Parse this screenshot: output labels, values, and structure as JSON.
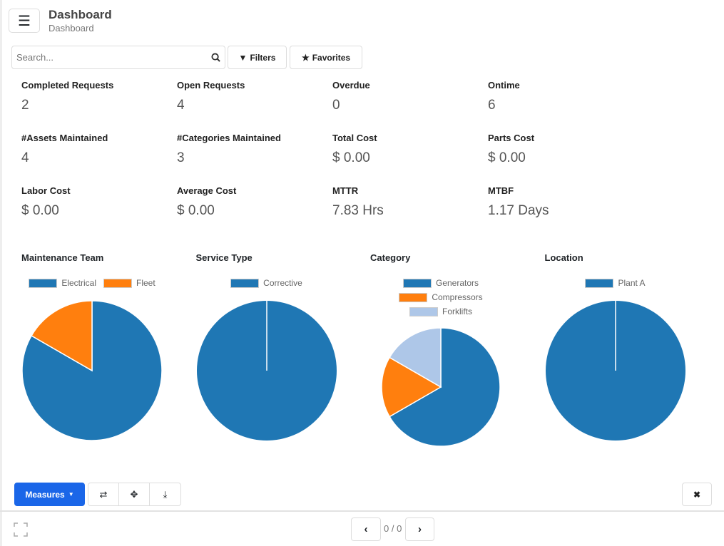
{
  "header": {
    "title": "Dashboard",
    "breadcrumb": "Dashboard"
  },
  "search": {
    "placeholder": "Search..."
  },
  "toolbar": {
    "filters": "Filters",
    "favorites": "Favorites"
  },
  "kpis": [
    {
      "label": "Completed Requests",
      "value": "2"
    },
    {
      "label": "Open Requests",
      "value": "4"
    },
    {
      "label": "Overdue",
      "value": "0"
    },
    {
      "label": "Ontime",
      "value": "6"
    },
    {
      "label": "#Assets Maintained",
      "value": "4"
    },
    {
      "label": "#Categories Maintained",
      "value": "3"
    },
    {
      "label": "Total Cost",
      "value": "$ 0.00"
    },
    {
      "label": "Parts Cost",
      "value": "$ 0.00"
    },
    {
      "label": "Labor Cost",
      "value": "$ 0.00"
    },
    {
      "label": "Average Cost",
      "value": "$ 0.00"
    },
    {
      "label": "MTTR",
      "value": "7.83 Hrs"
    },
    {
      "label": "MTBF",
      "value": "1.17 Days"
    }
  ],
  "chart_data": [
    {
      "type": "pie",
      "title": "Maintenance Team",
      "categories": [
        "Electrical",
        "Fleet"
      ],
      "values": [
        5,
        1
      ],
      "colors": [
        "#1f77b4",
        "#ff7f0e"
      ],
      "legend": "top"
    },
    {
      "type": "pie",
      "title": "Service Type",
      "categories": [
        "Corrective"
      ],
      "values": [
        6
      ],
      "colors": [
        "#1f77b4"
      ],
      "legend": "top"
    },
    {
      "type": "pie",
      "title": "Category",
      "categories": [
        "Generators",
        "Compressors",
        "Forklifts"
      ],
      "values": [
        4,
        1,
        1
      ],
      "colors": [
        "#1f77b4",
        "#ff7f0e",
        "#aec7e8"
      ],
      "legend": "top"
    },
    {
      "type": "pie",
      "title": "Location",
      "categories": [
        "Plant A"
      ],
      "values": [
        6
      ],
      "colors": [
        "#1f77b4"
      ],
      "legend": "top"
    }
  ],
  "bottom": {
    "measures": "Measures",
    "pager": "0 / 0"
  }
}
